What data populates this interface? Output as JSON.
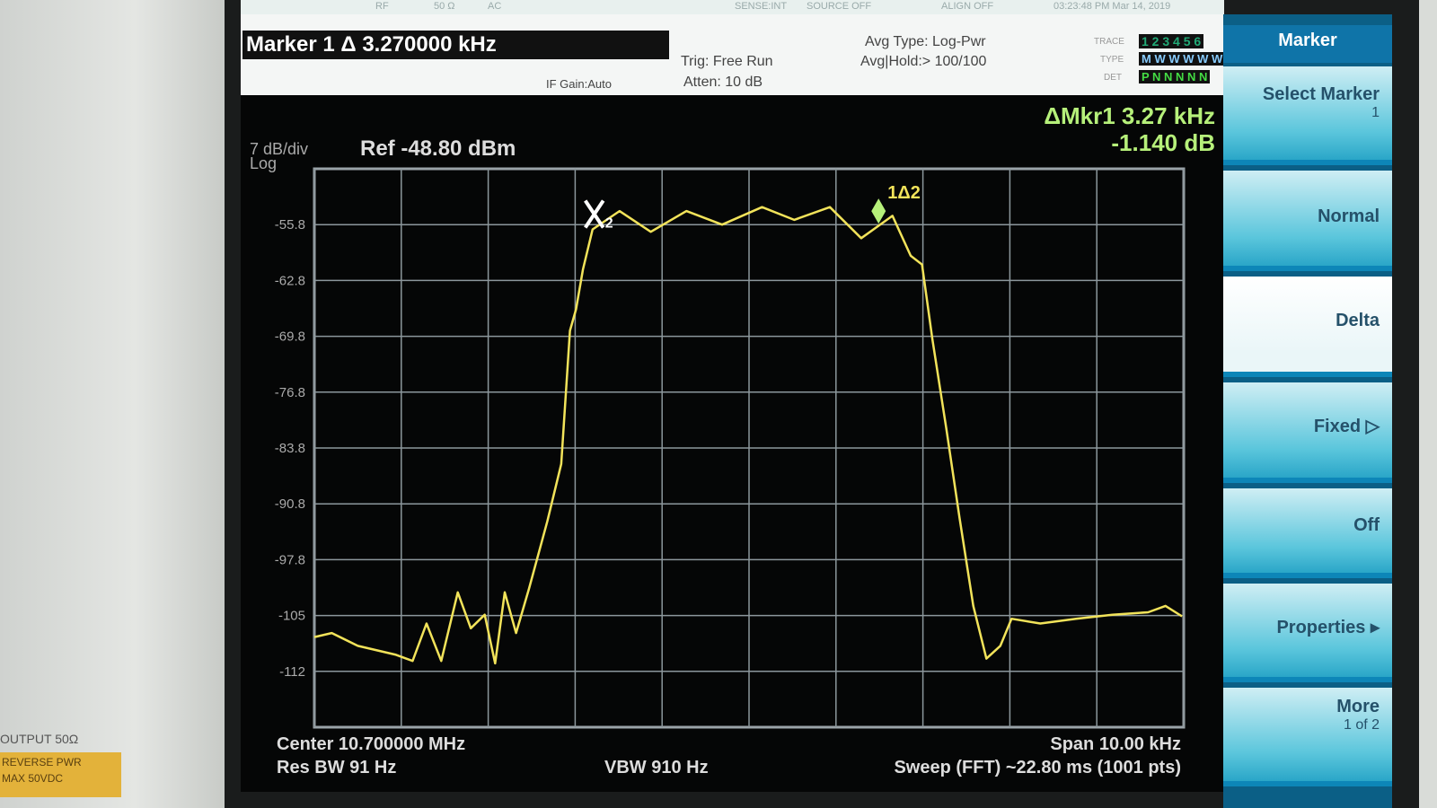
{
  "screen": {
    "status": {
      "rf": "RF",
      "impedance": "50 Ω",
      "coupling": "AC",
      "sense": "SENSE:INT",
      "source": "SOURCE OFF",
      "align": "ALIGN OFF",
      "datetime": "03:23:48 PM Mar 14, 2019"
    },
    "header": {
      "marker_title": "Marker 1 Δ 3.270000 kHz",
      "if_gain": "IF Gain:Auto",
      "trig": "Trig: Free Run",
      "atten": "Atten: 10 dB",
      "avg_type": "Avg Type: Log-Pwr",
      "avg_hold": "Avg|Hold:> 100/100",
      "trace_label": "TRACE",
      "trace_value": "1 2 3 4 5 6",
      "type_label": "TYPE",
      "type_value": "M W W W W W",
      "det_label": "DET",
      "det_value": "P N N N N N"
    },
    "readout": {
      "delta_freq": "ΔMkr1 3.27 kHz",
      "delta_amp": "-1.140 dB",
      "scale": "7 dB/div",
      "scale_type": "Log",
      "ref": "Ref -48.80 dBm"
    },
    "footer": {
      "center": "Center 10.700000 MHz",
      "res_bw": "Res BW 91 Hz",
      "vbw": "VBW 910 Hz",
      "span": "Span 10.00 kHz",
      "sweep": "Sweep (FFT) ~22.80 ms (1001 pts)"
    },
    "softkeys": {
      "title": "Marker",
      "select_marker": "Select Marker",
      "select_marker_value": "1",
      "normal": "Normal",
      "delta": "Delta",
      "fixed": "Fixed",
      "off": "Off",
      "properties": "Properties",
      "more": "More",
      "more_page": "1 of 2"
    },
    "bezel": {
      "output": "OUTPUT 50Ω",
      "reverse_pwr": "REVERSE PWR",
      "max": "MAX 50VDC"
    }
  },
  "chart_data": {
    "type": "line",
    "color": "#f2e35a",
    "grid": true,
    "x": [
      10.695,
      10.6952,
      10.6955,
      10.69593,
      10.69613,
      10.69629,
      10.69646,
      10.69665,
      10.6968,
      10.69696,
      10.69708,
      10.69719,
      10.69732,
      10.69747,
      10.69768,
      10.69784,
      10.69794,
      10.69801,
      10.69809,
      10.6982,
      10.69851,
      10.69887,
      10.69928,
      10.69969,
      10.70015,
      10.70052,
      10.70093,
      10.70129,
      10.70165,
      10.70186,
      10.70199,
      10.70211,
      10.70227,
      10.70242,
      10.70258,
      10.70273,
      10.70289,
      10.70302,
      10.70335,
      10.70376,
      10.70418,
      10.70459,
      10.70479,
      10.70498
    ],
    "values": [
      -107.5,
      -107,
      -108.6,
      -109.7,
      -110.5,
      -105.8,
      -110.5,
      -101.9,
      -106.4,
      -104.7,
      -110.8,
      -101.9,
      -107,
      -101.4,
      -93,
      -85.8,
      -69.1,
      -66.4,
      -61.4,
      -56.4,
      -54.1,
      -56.7,
      -54.1,
      -55.8,
      -53.6,
      -55.2,
      -53.6,
      -57.5,
      -54.7,
      -59.7,
      -60.8,
      -70.2,
      -81.4,
      -92.5,
      -103.6,
      -110.2,
      -108.6,
      -105.2,
      -105.8,
      -105.2,
      -104.7,
      -104.4,
      -103.6,
      -104.9
    ],
    "xlim": [
      10.695,
      10.705
    ],
    "xticks": [
      10.695,
      10.696,
      10.697,
      10.698,
      10.699,
      10.7,
      10.701,
      10.702,
      10.703,
      10.704,
      10.705
    ],
    "ylim": [
      -118.8,
      -48.8
    ],
    "yticks": [
      -55.8,
      -62.8,
      -69.8,
      -76.8,
      -83.8,
      -90.8,
      -97.8,
      {
        "value": -104.8,
        "label": "-105"
      },
      {
        "value": -111.8,
        "label": "-112"
      }
    ],
    "markers": [
      {
        "label": "1Δ2",
        "x": 10.70149,
        "y": -55.0
      },
      {
        "label": "2",
        "x": 10.69822,
        "y": -56.4
      }
    ]
  }
}
